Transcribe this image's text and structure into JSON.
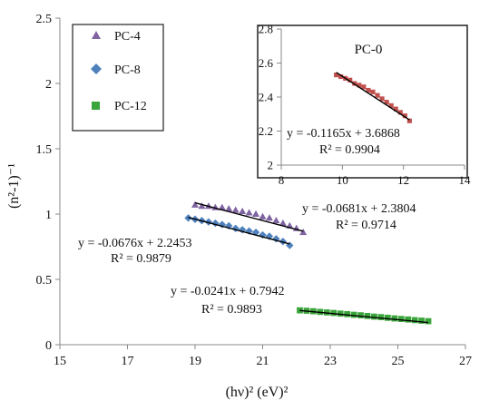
{
  "chart_data": [
    {
      "type": "scatter",
      "title": "",
      "xlabel": "(hν)² (eV)²",
      "ylabel": "(n²-1)⁻¹",
      "xlim": [
        15,
        27
      ],
      "ylim": [
        0,
        2.5
      ],
      "xticks": [
        "15",
        "17",
        "19",
        "21",
        "23",
        "25",
        "27"
      ],
      "yticks": [
        "0",
        "0.5",
        "1",
        "1.5",
        "2",
        "2.5"
      ],
      "grid": false,
      "legend": "top-left",
      "series": [
        {
          "name": "PC-4",
          "marker": "triangle",
          "color": "#8064A2",
          "x": [
            19.0,
            19.2,
            19.4,
            19.6,
            19.8,
            20.0,
            20.2,
            20.4,
            20.6,
            20.8,
            21.0,
            21.2,
            21.4,
            21.6,
            21.8,
            22.0,
            22.2
          ],
          "y": [
            1.07,
            1.06,
            1.06,
            1.05,
            1.05,
            1.04,
            1.03,
            1.02,
            1.01,
            1.0,
            0.98,
            0.97,
            0.95,
            0.93,
            0.91,
            0.89,
            0.86
          ],
          "fit_equation": "y = -0.0681x + 2.3804",
          "fit_r2": "R² = 0.9714",
          "fit_line": {
            "slope": -0.0681,
            "intercept": 2.3804,
            "x_range": [
              19.0,
              22.2
            ]
          }
        },
        {
          "name": "PC-8",
          "marker": "diamond",
          "color": "#4F81BD",
          "x": [
            18.8,
            19.0,
            19.2,
            19.4,
            19.6,
            19.8,
            20.0,
            20.2,
            20.4,
            20.6,
            20.8,
            21.0,
            21.2,
            21.4,
            21.6,
            21.8
          ],
          "y": [
            0.97,
            0.96,
            0.95,
            0.94,
            0.93,
            0.92,
            0.91,
            0.89,
            0.88,
            0.87,
            0.86,
            0.84,
            0.83,
            0.81,
            0.79,
            0.76
          ],
          "fit_equation": "y = -0.0676x + 2.2453",
          "fit_r2": "R² = 0.9879",
          "fit_line": {
            "slope": -0.0676,
            "intercept": 2.2453,
            "x_range": [
              18.8,
              21.8
            ]
          }
        },
        {
          "name": "PC-12",
          "marker": "square",
          "color": "#3AA53A",
          "x": [
            22.1,
            22.3,
            22.5,
            22.7,
            22.9,
            23.1,
            23.3,
            23.5,
            23.7,
            23.9,
            24.1,
            24.3,
            24.5,
            24.7,
            24.9,
            25.1,
            25.3,
            25.5,
            25.7,
            25.9
          ],
          "y": [
            0.263,
            0.26,
            0.256,
            0.251,
            0.247,
            0.243,
            0.238,
            0.234,
            0.229,
            0.225,
            0.22,
            0.215,
            0.211,
            0.206,
            0.201,
            0.197,
            0.193,
            0.188,
            0.184,
            0.18
          ],
          "fit_equation": "y = -0.0241x + 0.7942",
          "fit_r2": "R² = 0.9893",
          "fit_line": {
            "slope": -0.0241,
            "intercept": 0.7942,
            "x_range": [
              22.1,
              25.9
            ]
          }
        }
      ]
    },
    {
      "type": "scatter",
      "title": "PC-0",
      "xlabel": "",
      "ylabel": "",
      "xlim": [
        8,
        14
      ],
      "ylim": [
        2,
        2.8
      ],
      "xticks": [
        "8",
        "10",
        "12",
        "14"
      ],
      "yticks": [
        "2",
        "2.2",
        "2.4",
        "2.6",
        "2.8"
      ],
      "grid": false,
      "series": [
        {
          "name": "PC-0",
          "marker": "square",
          "color": "#C0504D",
          "x": [
            9.8,
            9.95,
            10.1,
            10.25,
            10.4,
            10.55,
            10.7,
            10.85,
            11.0,
            11.15,
            11.3,
            11.45,
            11.6,
            11.75,
            11.9,
            12.05,
            12.2
          ],
          "y": [
            2.53,
            2.52,
            2.51,
            2.5,
            2.48,
            2.47,
            2.46,
            2.44,
            2.43,
            2.41,
            2.39,
            2.37,
            2.35,
            2.33,
            2.31,
            2.29,
            2.26
          ],
          "fit_equation": "y = -0.1165x + 3.6868",
          "fit_r2": "R² = 0.9904",
          "fit_line": {
            "slope": -0.1165,
            "intercept": 3.6868,
            "x_range": [
              9.8,
              12.2
            ]
          }
        }
      ]
    }
  ]
}
